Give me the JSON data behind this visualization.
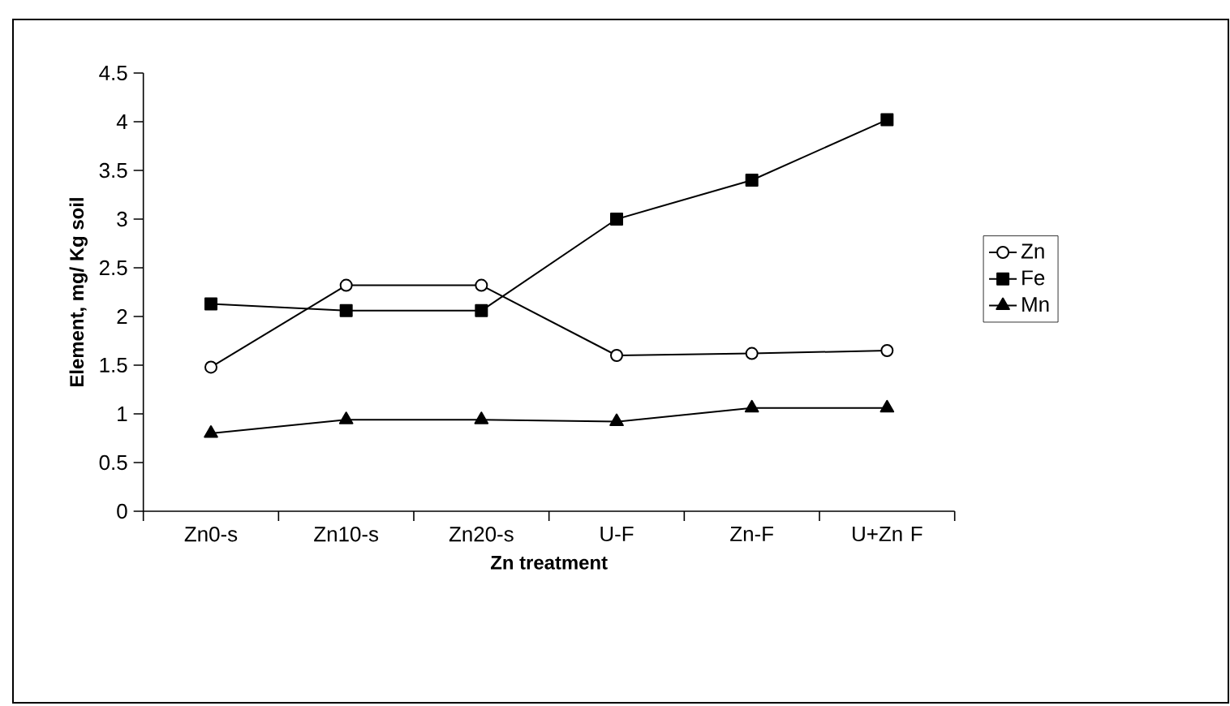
{
  "chart_data": {
    "type": "line",
    "xlabel": "Zn treatment",
    "ylabel": "Element, mg/ Kg soil",
    "categories": [
      "Zn0-s",
      "Zn10-s",
      "Zn20-s",
      "U-F",
      "Zn-F",
      "U+Zn F"
    ],
    "series": [
      {
        "name": "Zn",
        "color": "#000000",
        "marker": "circle",
        "values": [
          1.48,
          2.32,
          2.32,
          1.6,
          1.62,
          1.65
        ]
      },
      {
        "name": "Fe",
        "color": "#000000",
        "marker": "square",
        "values": [
          2.13,
          2.06,
          2.06,
          3.0,
          3.4,
          4.02
        ]
      },
      {
        "name": "Mn",
        "color": "#000000",
        "marker": "triangle",
        "values": [
          0.8,
          0.94,
          0.94,
          0.92,
          1.06,
          1.06
        ]
      }
    ],
    "ylim": [
      0,
      4.5
    ],
    "yticks": [
      0,
      0.5,
      1,
      1.5,
      2,
      2.5,
      3,
      3.5,
      4,
      4.5
    ],
    "grid": false,
    "legend": "right",
    "line_style": "solid"
  }
}
